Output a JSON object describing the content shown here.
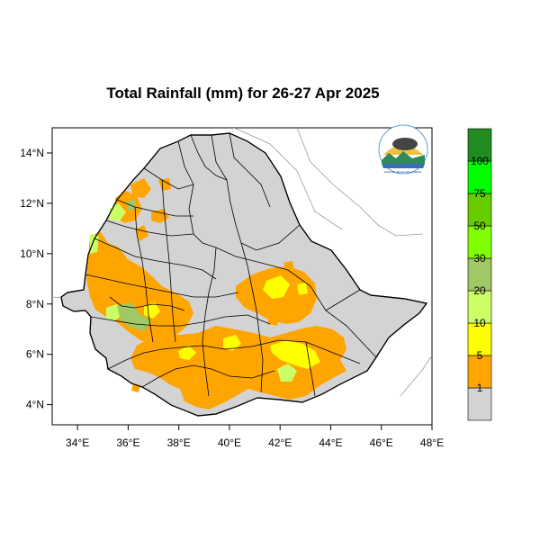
{
  "title": "Total Rainfall (mm) for 26-27 Apr 2025",
  "map": {
    "region": "Ethiopia",
    "lon_range": [
      33,
      48
    ],
    "lat_range": [
      3.2,
      15
    ],
    "x_ticks": [
      "34°E",
      "36°E",
      "38°E",
      "40°E",
      "42°E",
      "44°E",
      "46°E",
      "48°E"
    ],
    "y_ticks": [
      "4°N",
      "6°N",
      "8°N",
      "10°N",
      "12°N",
      "14°N"
    ],
    "land_color": "#d3d3d3",
    "logo_text": "Ethiopian Meteorology Institute"
  },
  "legend": {
    "labels": [
      "1",
      "5",
      "10",
      "20",
      "30",
      "50",
      "75",
      "100"
    ],
    "colors": [
      "#d3d3d3",
      "#ffa500",
      "#ffff00",
      "#ccff66",
      "#a0c864",
      "#7fff00",
      "#66cc00",
      "#00ff00",
      "#228b22"
    ]
  }
}
